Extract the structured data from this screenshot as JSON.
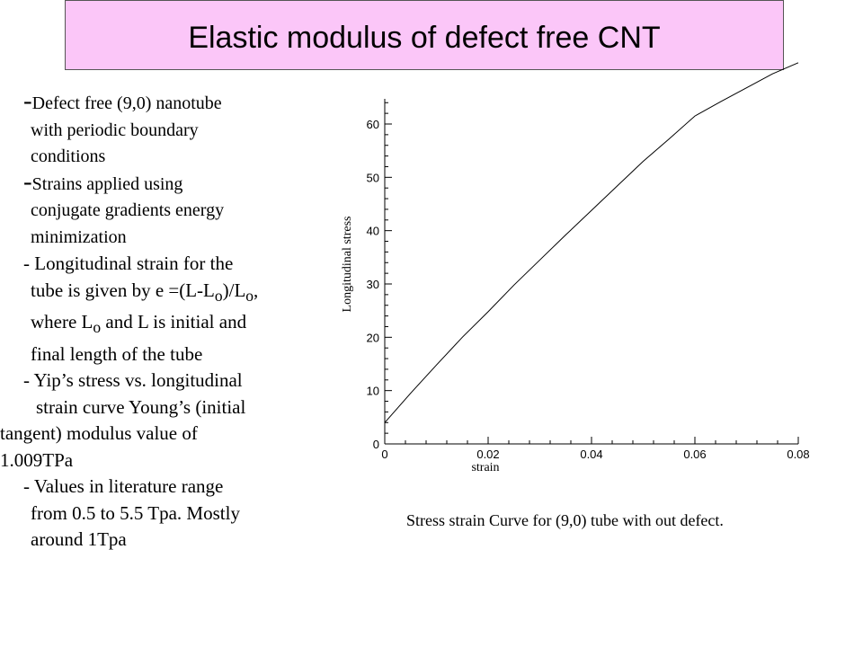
{
  "slide": {
    "title": "Elastic modulus of defect free CNT",
    "bullets": {
      "b1_dash": "-",
      "b1_l1": "Defect free (9,0) nanotube",
      "b1_l2": "with periodic boundary",
      "b1_l3": "conditions",
      "b2_dash": "-",
      "b2_l1": "Strains applied using",
      "b2_l2": "conjugate gradients energy",
      "b2_l3": "minimization",
      "b3_l1": "- Longitudinal strain for the",
      "b3_l2_a": "tube is given by e =(L-L",
      "b3_l2_sub1": "o",
      "b3_l2_b": ")/L",
      "b3_l2_sub2": "o",
      "b3_l2_c": ",",
      "b3_l3_a": "where L",
      "b3_l3_sub": "o",
      "b3_l3_b": " and L is initial and",
      "b3_l4": "final length of the tube",
      "b4_l1": "- Yip’s stress vs. longitudinal",
      "b4_l2": "strain curve Young’s (initial",
      "b4_l3": "tangent) modulus value of",
      "b4_l4": "1.009TPa",
      "b5_l1": "- Values in literature range",
      "b5_l2": "from 0.5 to 5.5 Tpa. Mostly",
      "b5_l3": "around 1Tpa"
    },
    "caption": "Stress strain Curve for (9,0) tube with out defect."
  },
  "chart_data": {
    "type": "line",
    "title": "",
    "xlabel": "strain",
    "ylabel": "Longitudinal stress",
    "xlim": [
      0,
      0.08
    ],
    "ylim": [
      0,
      65
    ],
    "x_ticks": [
      0,
      0.02,
      0.04,
      0.06,
      0.08
    ],
    "x_tick_labels": [
      "0",
      "0.02",
      "0.04",
      "0.06",
      "0.08"
    ],
    "y_ticks": [
      0,
      10,
      20,
      30,
      40,
      50,
      60
    ],
    "y_tick_labels": [
      "0",
      "10",
      "20",
      "30",
      "40",
      "50",
      "60"
    ],
    "grid": false,
    "series": [
      {
        "name": "",
        "color": "#000000",
        "x": [
          0,
          0.005,
          0.01,
          0.015,
          0.02,
          0.025,
          0.03,
          0.035,
          0.04,
          0.045,
          0.05,
          0.055,
          0.06,
          0.065,
          0.07,
          0.075,
          0.08
        ],
        "y": [
          4,
          9.5,
          14.8,
          20,
          24.8,
          29.8,
          34.5,
          39.2,
          43.8,
          48.4,
          53,
          57.2,
          61.5,
          64.2,
          66.8,
          69.4,
          71.5
        ]
      }
    ]
  }
}
